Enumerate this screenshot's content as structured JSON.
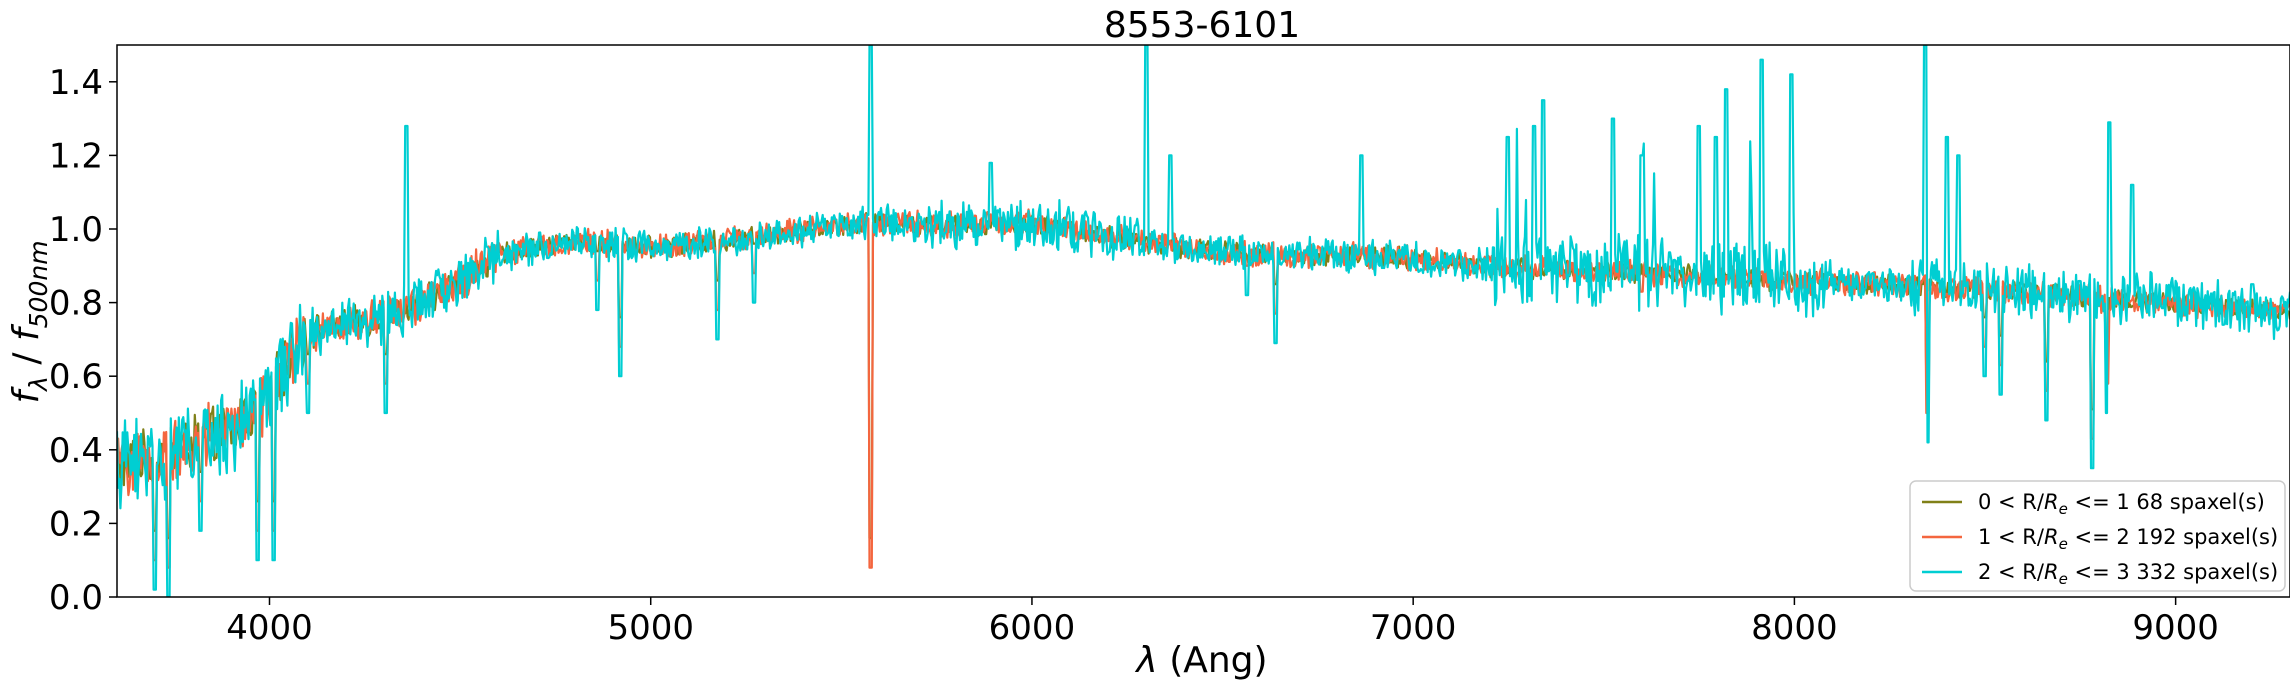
{
  "chart_data": {
    "type": "line",
    "title": "8553-6101",
    "xlabel_symbol": "λ",
    "xlabel_unit": "(Ang)",
    "ylabel_num": "f",
    "ylabel_num_sub": "λ",
    "ylabel_sep": " / ",
    "ylabel_den": "f",
    "ylabel_den_sub": "500nm",
    "xlim": [
      3600,
      9300
    ],
    "ylim": [
      0.0,
      1.5
    ],
    "xticks": [
      4000,
      5000,
      6000,
      7000,
      8000,
      9000
    ],
    "yticks": [
      0.0,
      0.2,
      0.4,
      0.6,
      0.8,
      1.0,
      1.2,
      1.4
    ],
    "ytick_labels": [
      "0.0",
      "0.2",
      "0.4",
      "0.6",
      "0.8",
      "1.0",
      "1.2",
      "1.4"
    ],
    "grid": false,
    "legend_position": "bottom-right",
    "continuum": {
      "x": [
        3600,
        3700,
        3800,
        3900,
        4000,
        4100,
        4200,
        4300,
        4400,
        4500,
        4600,
        4800,
        5000,
        5200,
        5400,
        5600,
        5800,
        6000,
        6200,
        6400,
        6600,
        6800,
        7000,
        7200,
        7400,
        7600,
        7800,
        8000,
        8200,
        8400,
        8600,
        8800,
        9000,
        9200,
        9300
      ],
      "y": [
        0.36,
        0.38,
        0.42,
        0.45,
        0.55,
        0.72,
        0.74,
        0.76,
        0.8,
        0.86,
        0.93,
        0.97,
        0.95,
        0.97,
        1.0,
        1.02,
        1.01,
        1.02,
        0.98,
        0.95,
        0.93,
        0.93,
        0.92,
        0.9,
        0.89,
        0.88,
        0.87,
        0.86,
        0.85,
        0.84,
        0.83,
        0.81,
        0.8,
        0.78,
        0.77
      ]
    },
    "absorption_features": [
      {
        "x": 3700,
        "y": 0.02
      },
      {
        "x": 3734,
        "y": 0.0
      },
      {
        "x": 3820,
        "y": 0.18
      },
      {
        "x": 3970,
        "y": 0.1
      },
      {
        "x": 4010,
        "y": 0.1
      },
      {
        "x": 4102,
        "y": 0.5
      },
      {
        "x": 4305,
        "y": 0.5
      },
      {
        "x": 4861,
        "y": 0.78
      },
      {
        "x": 4920,
        "y": 0.6
      },
      {
        "x": 5175,
        "y": 0.7
      },
      {
        "x": 5270,
        "y": 0.8
      },
      {
        "x": 5577,
        "y": 0.0
      },
      {
        "x": 6300,
        "y": 0.88
      },
      {
        "x": 6563,
        "y": 0.82
      },
      {
        "x": 6640,
        "y": 0.69
      },
      {
        "x": 7600,
        "y": 0.75
      },
      {
        "x": 8350,
        "y": 0.42
      },
      {
        "x": 8500,
        "y": 0.6
      },
      {
        "x": 8542,
        "y": 0.55
      },
      {
        "x": 8662,
        "y": 0.48
      },
      {
        "x": 8780,
        "y": 0.35
      },
      {
        "x": 8820,
        "y": 0.5
      }
    ],
    "emission_features": [
      {
        "x": 4358,
        "y": 1.28
      },
      {
        "x": 5577,
        "y": 1.5
      },
      {
        "x": 5892,
        "y": 1.18
      },
      {
        "x": 6300,
        "y": 1.5
      },
      {
        "x": 6364,
        "y": 1.2
      },
      {
        "x": 6864,
        "y": 1.2
      },
      {
        "x": 7247,
        "y": 1.25
      },
      {
        "x": 7316,
        "y": 1.28
      },
      {
        "x": 7340,
        "y": 1.35
      },
      {
        "x": 7524,
        "y": 1.3
      },
      {
        "x": 7600,
        "y": 1.2
      },
      {
        "x": 7750,
        "y": 1.28
      },
      {
        "x": 7794,
        "y": 1.25
      },
      {
        "x": 7821,
        "y": 1.38
      },
      {
        "x": 7914,
        "y": 1.46
      },
      {
        "x": 7993,
        "y": 1.42
      },
      {
        "x": 8344,
        "y": 1.5
      },
      {
        "x": 8399,
        "y": 1.25
      },
      {
        "x": 8430,
        "y": 1.2
      },
      {
        "x": 8827,
        "y": 1.29
      },
      {
        "x": 8885,
        "y": 1.12
      },
      {
        "x": 9200,
        "y": 0.85
      }
    ],
    "series": [
      {
        "label_pre": "0 < R/",
        "label_sym": "R",
        "label_sub": "e",
        "label_post": " <= 1 68 spaxel(s)",
        "color": "#808018",
        "noise": 0.025
      },
      {
        "label_pre": "1 < R/",
        "label_sym": "R",
        "label_sub": "e",
        "label_post": " <= 2 192 spaxel(s)",
        "color": "#f4663f",
        "noise": 0.03
      },
      {
        "label_pre": "2 < R/",
        "label_sym": "R",
        "label_sub": "e",
        "label_post": " <= 3 332 spaxel(s)",
        "color": "#00ced2",
        "noise": 0.04
      }
    ]
  }
}
